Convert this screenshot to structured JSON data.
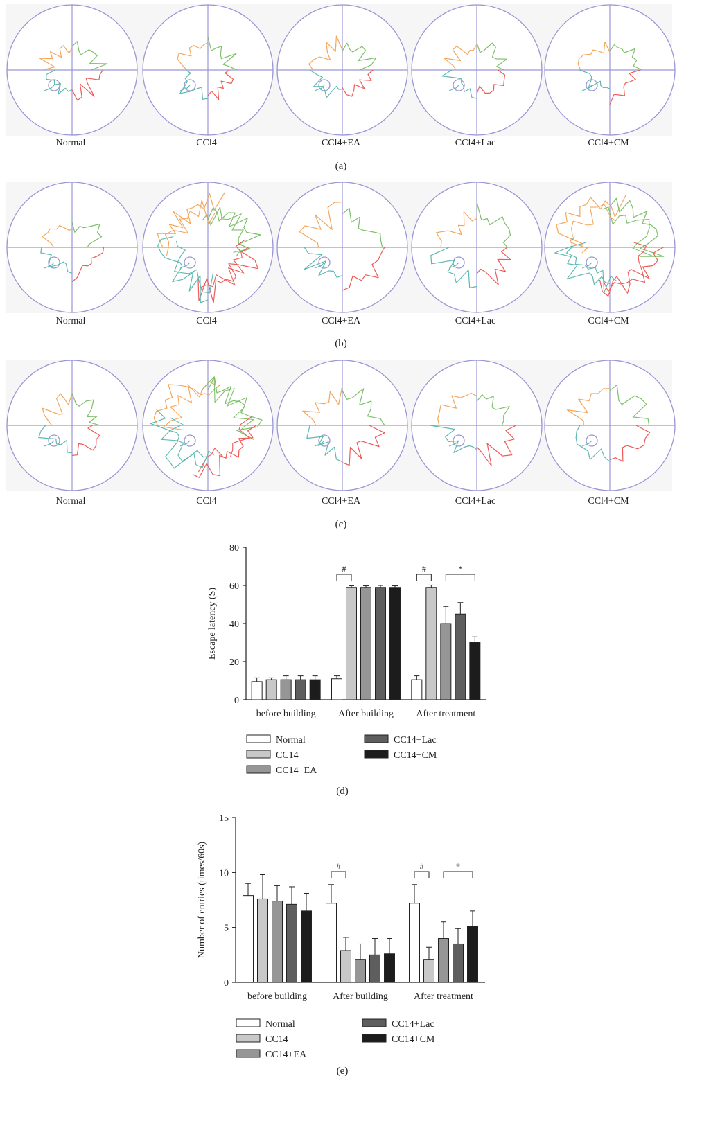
{
  "panels": [
    {
      "label": "(a)",
      "groups": [
        "Normal",
        "CCl4",
        "CCl4+EA",
        "CCl4+Lac",
        "CCl4+CM"
      ]
    },
    {
      "label": "(b)",
      "groups": [
        "Normal",
        "CCl4",
        "CCl4+EA",
        "CCl4+Lac",
        "CCl4+CM"
      ]
    },
    {
      "label": "(c)",
      "groups": [
        "Normal",
        "CCl4",
        "CCl4+EA",
        "CCl4+Lac",
        "CCl4+CM"
      ]
    }
  ],
  "colors": {
    "pool": "#9a96d4",
    "quad_orange": "#f4a65a",
    "quad_green": "#7dbf69",
    "quad_teal": "#5fb8b0",
    "quad_red": "#ec5b57",
    "bar_fills": [
      "#ffffff",
      "#c8c8c8",
      "#969696",
      "#5e5e5e",
      "#1c1c1c"
    ]
  },
  "chart_data": [
    {
      "type": "bar",
      "panel_label": "(d)",
      "ylabel": "Escape latency (S)",
      "ylim": [
        0,
        80
      ],
      "yticks": [
        0,
        20,
        40,
        60,
        80
      ],
      "categories": [
        "before building",
        "After building",
        "After treatment"
      ],
      "series": [
        {
          "name": "Normal",
          "values": [
            9.5,
            11,
            10.5
          ],
          "errors": [
            2,
            1.5,
            2
          ]
        },
        {
          "name": "CC14",
          "values": [
            10.5,
            59,
            59
          ],
          "errors": [
            1,
            0.8,
            1.2
          ]
        },
        {
          "name": "CC14+EA",
          "values": [
            10.5,
            59,
            40
          ],
          "errors": [
            2,
            0.8,
            9
          ]
        },
        {
          "name": "CC14+Lac",
          "values": [
            10.5,
            59,
            45
          ],
          "errors": [
            2,
            1,
            6
          ]
        },
        {
          "name": "CC14+CM",
          "values": [
            10.5,
            59,
            30
          ],
          "errors": [
            2,
            0.8,
            3
          ]
        }
      ],
      "annotations": [
        {
          "symbol": "#",
          "category": 1,
          "from": 0,
          "to": 1
        },
        {
          "symbol": "#",
          "category": 2,
          "from": 0,
          "to": 1
        },
        {
          "symbol": "*",
          "category": 2,
          "from": 2,
          "to": 4
        }
      ],
      "legend": "bottom"
    },
    {
      "type": "bar",
      "panel_label": "(e)",
      "ylabel": "Number of entries (times/60s)",
      "ylim": [
        0,
        15
      ],
      "yticks": [
        0,
        5,
        10,
        15
      ],
      "categories": [
        "before building",
        "After building",
        "After treatment"
      ],
      "series": [
        {
          "name": "Normal",
          "values": [
            7.9,
            7.2,
            7.2
          ],
          "errors": [
            1.1,
            1.7,
            1.7
          ]
        },
        {
          "name": "CC14",
          "values": [
            7.6,
            2.9,
            2.1
          ],
          "errors": [
            2.2,
            1.2,
            1.1
          ]
        },
        {
          "name": "CC14+EA",
          "values": [
            7.4,
            2.1,
            4.0
          ],
          "errors": [
            1.4,
            1.4,
            1.5
          ]
        },
        {
          "name": "CC14+Lac",
          "values": [
            7.1,
            2.5,
            3.5
          ],
          "errors": [
            1.6,
            1.5,
            1.4
          ]
        },
        {
          "name": "CC14+CM",
          "values": [
            6.5,
            2.6,
            5.1
          ],
          "errors": [
            1.6,
            1.4,
            1.4
          ]
        }
      ],
      "annotations": [
        {
          "symbol": "#",
          "category": 1,
          "from": 0,
          "to": 1
        },
        {
          "symbol": "#",
          "category": 2,
          "from": 0,
          "to": 1
        },
        {
          "symbol": "*",
          "category": 2,
          "from": 2,
          "to": 4
        }
      ],
      "legend": "bottom"
    }
  ]
}
